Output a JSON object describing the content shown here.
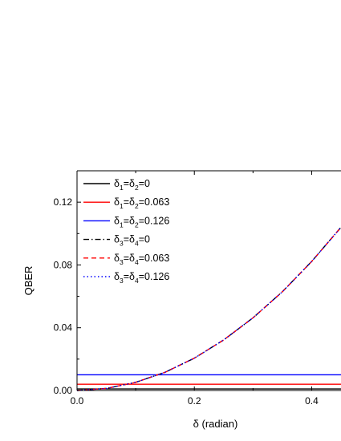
{
  "chart_data": {
    "type": "line",
    "title": "",
    "xlabel": "δ (radian)",
    "ylabel": "QBER",
    "xlim": [
      0.0,
      0.45
    ],
    "ylim": [
      0.0,
      0.14
    ],
    "x_ticks": [
      "0.0",
      "0.2",
      "0.4"
    ],
    "y_ticks": [
      "0.00",
      "0.04",
      "0.08",
      "0.12"
    ],
    "x_tick_values": [
      0.0,
      0.2,
      0.4
    ],
    "y_tick_values": [
      0.0,
      0.04,
      0.08,
      0.12
    ],
    "legend_placement": "top-left",
    "grid": false,
    "series": [
      {
        "sub_a": "1",
        "sub_b": "2",
        "value": "0",
        "color": "#000000",
        "dash": "solid",
        "x": [
          0.0,
          0.45
        ],
        "y": [
          0.001,
          0.001
        ]
      },
      {
        "sub_a": "1",
        "sub_b": "2",
        "value": "0.063",
        "color": "#ff0000",
        "dash": "solid",
        "x": [
          0.0,
          0.45
        ],
        "y": [
          0.004,
          0.004
        ]
      },
      {
        "sub_a": "1",
        "sub_b": "2",
        "value": "0.126",
        "color": "#0000ff",
        "dash": "solid",
        "x": [
          0.0,
          0.45
        ],
        "y": [
          0.01,
          0.01
        ]
      },
      {
        "sub_a": "3",
        "sub_b": "4",
        "value": "0",
        "color": "#000000",
        "dash": "dashdot",
        "x": [
          0.0,
          0.05,
          0.1,
          0.15,
          0.2,
          0.25,
          0.3,
          0.35,
          0.4,
          0.45
        ],
        "y": [
          0.0,
          0.0013,
          0.0052,
          0.0116,
          0.0206,
          0.0322,
          0.0463,
          0.0629,
          0.0822,
          0.104
        ]
      },
      {
        "sub_a": "3",
        "sub_b": "4",
        "value": "0.063",
        "color": "#ff0000",
        "dash": "dashed",
        "x": [
          0.0,
          0.05,
          0.1,
          0.15,
          0.2,
          0.25,
          0.3,
          0.35,
          0.4,
          0.45
        ],
        "y": [
          0.0,
          0.0013,
          0.0052,
          0.0116,
          0.0206,
          0.0322,
          0.0463,
          0.0629,
          0.0822,
          0.104
        ]
      },
      {
        "sub_a": "3",
        "sub_b": "4",
        "value": "0.126",
        "color": "#0000ff",
        "dash": "dotted",
        "x": [
          0.0,
          0.05,
          0.1,
          0.15,
          0.2,
          0.25,
          0.3,
          0.35,
          0.4,
          0.45
        ],
        "y": [
          0.0,
          0.0013,
          0.0052,
          0.0116,
          0.0206,
          0.0322,
          0.0463,
          0.0629,
          0.0822,
          0.104
        ]
      }
    ],
    "legend_symbol": "δ",
    "legend_eq": "="
  }
}
